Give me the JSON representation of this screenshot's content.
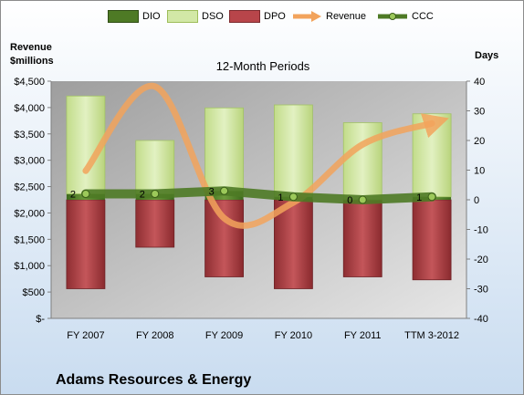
{
  "chart_data": {
    "type": "bar",
    "subtitle": "12-Month Periods",
    "company": "Adams Resources & Energy",
    "ylabel_left": [
      "Revenue",
      "$millions"
    ],
    "ylabel_right": "Days",
    "categories": [
      "FY 2007",
      "FY 2008",
      "FY 2009",
      "FY 2010",
      "FY 2011",
      "TTM 3-2012"
    ],
    "left_axis": {
      "ylim": [
        0,
        4500
      ],
      "ticks": [
        "$-",
        "$500",
        "$1,000",
        "$1,500",
        "$2,000",
        "$2,500",
        "$3,000",
        "$3,500",
        "$4,000",
        "$4,500"
      ]
    },
    "right_axis": {
      "ylim": [
        -40,
        40
      ],
      "ticks": [
        "-40",
        "-30",
        "-20",
        "-10",
        "0",
        "10",
        "20",
        "30",
        "40"
      ]
    },
    "series": [
      {
        "name": "DIO",
        "axis": "right",
        "values": [
          2,
          2,
          3,
          1,
          0,
          1
        ],
        "color": "#4e7a25"
      },
      {
        "name": "DSO",
        "axis": "right",
        "values": [
          33,
          18,
          28,
          31,
          26,
          28
        ],
        "color": "#d2e8a6"
      },
      {
        "name": "DPO",
        "axis": "right",
        "values": [
          -30,
          -16,
          -26,
          -30,
          -26,
          -27
        ],
        "color": "#b8454a"
      },
      {
        "name": "Revenue",
        "axis": "left",
        "values": [
          2800,
          4400,
          1900,
          2200,
          3300,
          3700
        ],
        "color": "#f2a35c"
      },
      {
        "name": "CCC",
        "axis": "right",
        "values": [
          2,
          2,
          3,
          1,
          0,
          1
        ],
        "color": "#4e7a25"
      }
    ],
    "ccc_labels": [
      "2",
      "2",
      "3",
      "1",
      "0",
      "1"
    ],
    "grid": false,
    "legend_position": "top"
  }
}
